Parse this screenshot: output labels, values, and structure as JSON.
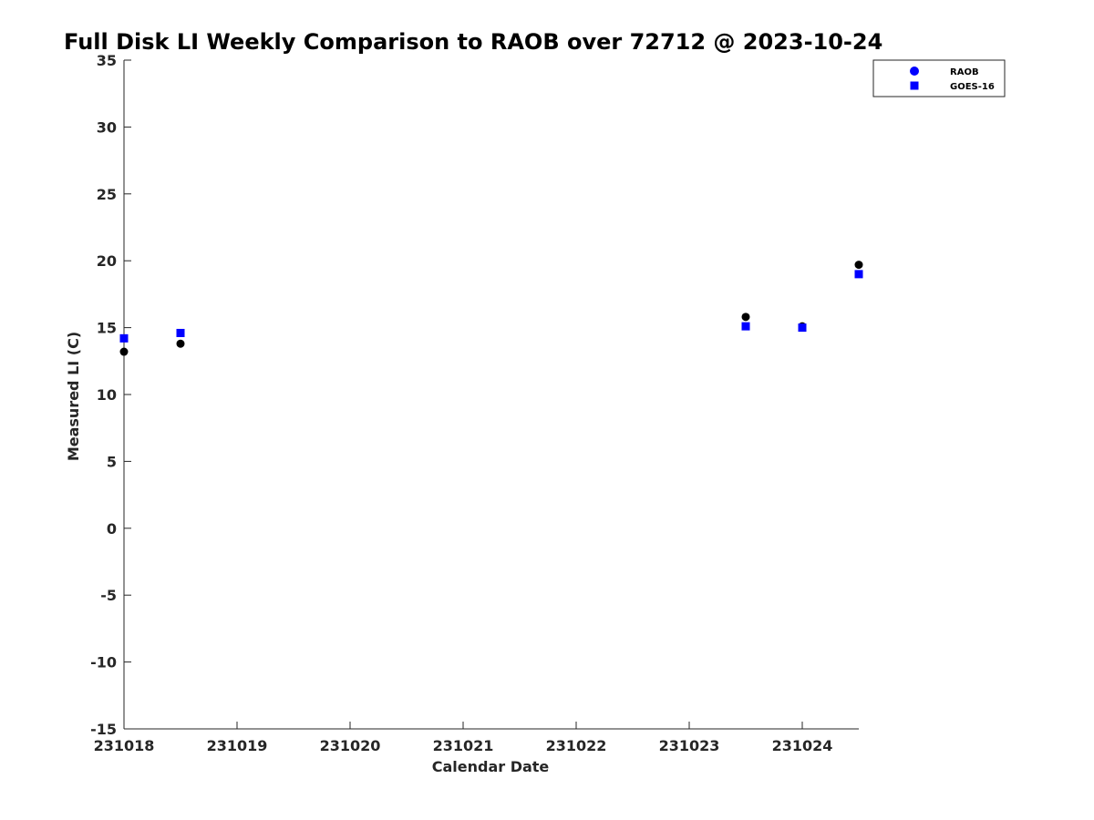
{
  "chart_data": {
    "type": "scatter",
    "title": "Full Disk LI Weekly Comparison to RAOB over 72712 @ 2023-10-24",
    "xlabel": "Calendar Date",
    "ylabel": "Measured LI (C)",
    "xlim": [
      231018,
      231024.5
    ],
    "ylim": [
      -15,
      35
    ],
    "x_ticks": [
      231018,
      231019,
      231020,
      231021,
      231022,
      231023,
      231024
    ],
    "x_tick_labels": [
      "231018",
      "231019",
      "231020",
      "231021",
      "231022",
      "231023",
      "231024"
    ],
    "y_ticks": [
      35,
      30,
      25,
      20,
      15,
      10,
      5,
      0,
      -5,
      -10,
      -15
    ],
    "y_tick_labels": [
      "35",
      "30",
      "25",
      "20",
      "15",
      "10",
      "5",
      "0",
      "-5",
      "-10",
      "-15"
    ],
    "grid": false,
    "legend_position": "top-right",
    "series": [
      {
        "name": "RAOB",
        "marker": "circle",
        "color": "#000000",
        "legend_color": "#0000ff",
        "points": [
          {
            "x": 231018,
            "y": 13.2
          },
          {
            "x": 231018.5,
            "y": 13.8
          },
          {
            "x": 231023.5,
            "y": 15.8
          },
          {
            "x": 231024,
            "y": 15.1
          },
          {
            "x": 231024.5,
            "y": 19.7
          }
        ]
      },
      {
        "name": "GOES-16",
        "marker": "square",
        "color": "#0000ff",
        "legend_color": "#0000ff",
        "points": [
          {
            "x": 231018,
            "y": 14.2
          },
          {
            "x": 231018.5,
            "y": 14.6
          },
          {
            "x": 231023.5,
            "y": 15.1
          },
          {
            "x": 231024,
            "y": 15.0
          },
          {
            "x": 231024.5,
            "y": 19.0
          }
        ]
      }
    ]
  }
}
